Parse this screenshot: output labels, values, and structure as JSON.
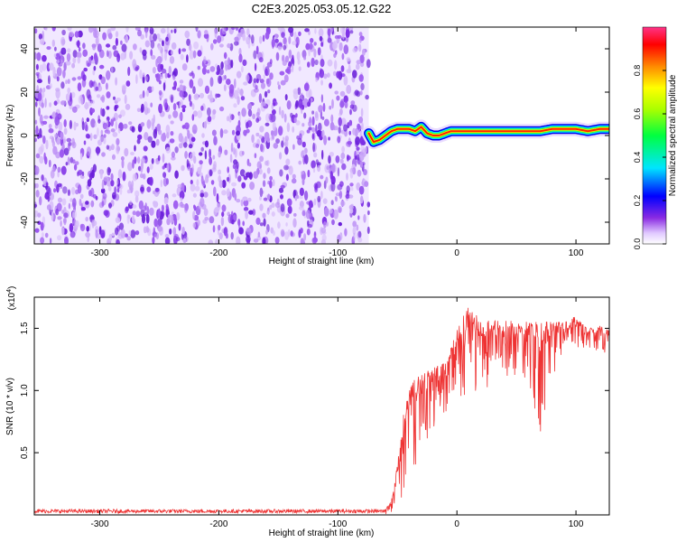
{
  "title": "C2E3.2025.053.05.12.G22",
  "chart_data": [
    {
      "type": "heatmap",
      "xlabel": "Height of straight line (km)",
      "ylabel": "Frequency (Hz)",
      "xlim": [
        -355,
        128
      ],
      "ylim": [
        -50,
        50
      ],
      "x_ticks": [
        -300,
        -200,
        -100,
        0,
        100
      ],
      "y_ticks": [
        -40,
        -20,
        0,
        20,
        40
      ],
      "colorbar": {
        "label": "Normalized spectral amplitude",
        "range": [
          0,
          1
        ],
        "ticks": [
          0.0,
          0.2,
          0.4,
          0.6,
          0.8
        ]
      },
      "noise_region_x": [
        -355,
        -74
      ],
      "ridge": {
        "x": [
          -74,
          -70,
          -65,
          -60,
          -55,
          -50,
          -45,
          -40,
          -35,
          -30,
          -25,
          -20,
          -15,
          -10,
          -5,
          0,
          10,
          20,
          30,
          40,
          50,
          60,
          70,
          80,
          90,
          100,
          110,
          120,
          128
        ],
        "y": [
          1,
          -3,
          -2,
          0,
          2,
          3,
          3,
          3,
          2,
          4,
          1,
          0,
          0,
          1,
          2,
          2,
          2,
          2,
          2,
          2,
          2,
          2,
          2,
          3,
          3,
          3,
          2,
          3,
          3
        ]
      }
    },
    {
      "type": "line",
      "xlabel": "Height of straight line (km)",
      "ylabel": "SNR (10 * v/v)",
      "y_multiplier": "(x10",
      "y_multiplier_exponent": "4",
      "y_multiplier_close": ")",
      "xlim": [
        -355,
        128
      ],
      "ylim": [
        0,
        1.75
      ],
      "x_ticks": [
        -300,
        -200,
        -100,
        0,
        100
      ],
      "y_ticks": [
        0.5,
        1.0,
        1.5
      ],
      "series": [
        {
          "color": "#ee3333",
          "envelope": {
            "x": [
              -355,
              -60,
              -55,
              -50,
              -45,
              -40,
              -35,
              -30,
              -25,
              -20,
              -15,
              -10,
              -5,
              0,
              10,
              20,
              30,
              40,
              50,
              60,
              70,
              80,
              90,
              100,
              110,
              120,
              128
            ],
            "upper": [
              0.04,
              0.05,
              0.12,
              0.4,
              0.8,
              1.0,
              1.1,
              1.12,
              1.15,
              1.2,
              1.2,
              1.22,
              1.35,
              1.48,
              1.7,
              1.55,
              1.57,
              1.56,
              1.56,
              1.55,
              1.55,
              1.55,
              1.55,
              1.6,
              1.5,
              1.52,
              1.48
            ],
            "lower": [
              0.0,
              0.0,
              0.02,
              0.08,
              0.15,
              0.25,
              0.3,
              0.5,
              0.6,
              0.7,
              0.75,
              0.8,
              0.85,
              0.9,
              0.95,
              1.0,
              1.0,
              1.05,
              1.1,
              1.1,
              0.62,
              1.1,
              1.2,
              1.3,
              1.35,
              1.3,
              1.3
            ]
          }
        }
      ]
    }
  ]
}
